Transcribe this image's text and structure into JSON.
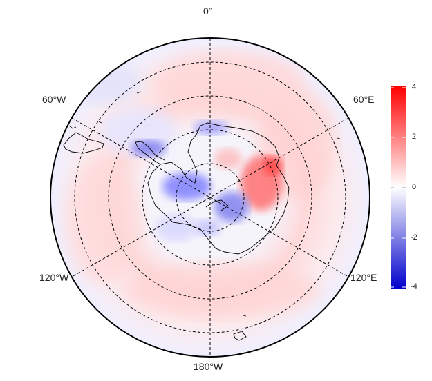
{
  "map": {
    "projection": "south-polar-stereographic",
    "longitude_labels": {
      "top": "0°",
      "upper_left": "60°W",
      "upper_right": "60°E",
      "lower_left": "120°W",
      "lower_right": "120°E",
      "bottom": "180°W"
    },
    "graticule_style": "dashed",
    "coastlines": [
      "Antarctica",
      "Antarctic Peninsula",
      "South America tip",
      "sub-Antarctic islands"
    ]
  },
  "colorbar": {
    "ticks": [
      "4",
      "2",
      "0",
      "-2",
      "-4"
    ],
    "min": -4,
    "max": 4,
    "colors": {
      "high": "#ff0000",
      "mid": "#ffffff",
      "low": "#0000cc"
    }
  }
}
